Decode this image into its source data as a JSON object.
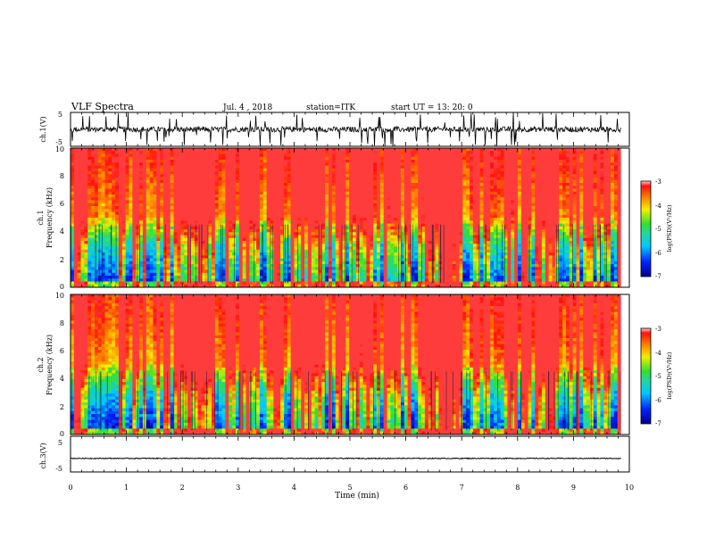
{
  "header": {
    "title": "VLF Spectra",
    "date": "Jul. 4 , 2018",
    "station": "station=ITK",
    "start": "start UT = 13: 20: 0"
  },
  "chart_data": [
    {
      "type": "line",
      "panel": "ch1-waveform",
      "ylabel": "ch.1(V)",
      "yticks": [
        "5",
        "-5"
      ],
      "ylim": [
        -5,
        5
      ],
      "xlim": [
        0,
        10
      ],
      "color": "#000000",
      "data_end_min": 9.85,
      "baseline": 0,
      "note_series": "noisy waveform with frequent spikes reaching about ±5 V"
    },
    {
      "type": "heatmap",
      "panel": "ch1-spectrogram",
      "ylabel_line1": "ch.1",
      "ylabel_line2": "Frequency (kHz)",
      "yticks": [
        "0",
        "2",
        "4",
        "6",
        "8",
        "10"
      ],
      "ylim": [
        0,
        10
      ],
      "xlim": [
        0,
        10
      ],
      "data_end_min": 9.85,
      "colorbar": {
        "label": "log(PSD)(V²/Hz)",
        "ticks": [
          "-3",
          "-4",
          "-5",
          "-6",
          "-7"
        ],
        "range": [
          -7,
          -3
        ]
      }
    },
    {
      "type": "heatmap",
      "panel": "ch2-spectrogram",
      "ylabel_line1": "ch.2",
      "ylabel_line2": "Frequency (kHz)",
      "yticks": [
        "0",
        "2",
        "4",
        "6",
        "8",
        "10"
      ],
      "ylim": [
        0,
        10
      ],
      "xlim": [
        0,
        10
      ],
      "data_end_min": 9.85,
      "colorbar": {
        "label": "log(PSD)(V²/Hz)",
        "ticks": [
          "-3",
          "-4",
          "-5",
          "-6",
          "-7"
        ],
        "range": [
          -7,
          -3
        ]
      }
    },
    {
      "type": "line",
      "panel": "ch3-waveform",
      "ylabel": "ch.3(V)",
      "yticks": [
        "5",
        "-5"
      ],
      "ylim": [
        -5,
        5
      ],
      "xlim": [
        0,
        10
      ],
      "color": "#000000",
      "data_end_min": 9.85,
      "baseline": -1.2,
      "note_series": "nearly flat trace with small ripples"
    }
  ],
  "xaxis": {
    "label": "Time (min)",
    "ticks": [
      "0",
      "1",
      "2",
      "3",
      "4",
      "5",
      "6",
      "7",
      "8",
      "9",
      "10"
    ]
  }
}
